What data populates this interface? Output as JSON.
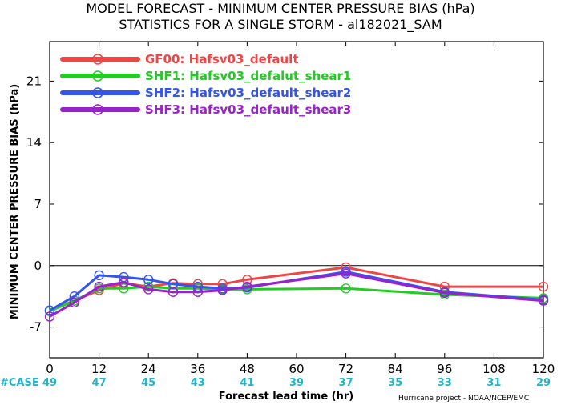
{
  "chart_data": {
    "type": "line",
    "title_line1": "MODEL FORECAST - MINIMUM CENTER PRESSURE BIAS (hPa)",
    "title_line2": "STATISTICS FOR A SINGLE STORM - al182021_SAM",
    "xlabel": "Forecast lead time (hr)",
    "ylabel": "MINIMUM CENTER PRESSURE BIAS (hPa)",
    "xlim": [
      0,
      120
    ],
    "ylim": [
      -10.5,
      25.5
    ],
    "x_ticks": [
      0,
      12,
      24,
      36,
      48,
      60,
      72,
      84,
      96,
      108,
      120
    ],
    "y_ticks": [
      -7,
      0,
      7,
      14,
      21
    ],
    "zero_line": true,
    "case_label": "#CASE",
    "case_counts": [
      "49",
      "47",
      "45",
      "43",
      "41",
      "39",
      "37",
      "35",
      "33",
      "31",
      "29"
    ],
    "credit": "Hurricane project - NOAA/NCEP/EMC",
    "legend_position": "top-left",
    "series": [
      {
        "name": "GF00: Hafsv03_default",
        "color": "#f04545",
        "x": [
          0,
          6,
          12,
          18,
          24,
          30,
          36,
          42,
          48,
          72,
          96,
          120
        ],
        "y": [
          -5.1,
          -4.0,
          -2.8,
          -2.0,
          -2.4,
          -2.0,
          -2.1,
          -2.1,
          -1.6,
          -0.2,
          -2.4,
          -2.4
        ]
      },
      {
        "name": "SHF1: Hafsv03_defalut_shear1",
        "color": "#22cc22",
        "x": [
          0,
          6,
          12,
          18,
          24,
          30,
          36,
          42,
          48,
          72,
          96,
          120
        ],
        "y": [
          -5.2,
          -4.0,
          -2.6,
          -2.6,
          -2.4,
          -2.6,
          -2.6,
          -2.7,
          -2.7,
          -2.6,
          -3.3,
          -3.7
        ]
      },
      {
        "name": "SHF2: Hafsv03_default_shear2",
        "color": "#3355ee",
        "x": [
          0,
          6,
          12,
          18,
          24,
          30,
          36,
          42,
          48,
          72,
          96,
          120
        ],
        "y": [
          -5.1,
          -3.5,
          -1.1,
          -1.3,
          -1.6,
          -2.1,
          -2.4,
          -2.6,
          -2.5,
          -0.7,
          -3.0,
          -3.9
        ]
      },
      {
        "name": "SHF3: Hafsv03_default_shear3",
        "color": "#9922cc",
        "x": [
          0,
          6,
          12,
          18,
          24,
          30,
          36,
          42,
          48,
          72,
          96,
          120
        ],
        "y": [
          -5.8,
          -4.2,
          -2.4,
          -1.9,
          -2.7,
          -3.0,
          -3.0,
          -2.8,
          -2.4,
          -0.9,
          -3.1,
          -4.0
        ]
      }
    ]
  }
}
